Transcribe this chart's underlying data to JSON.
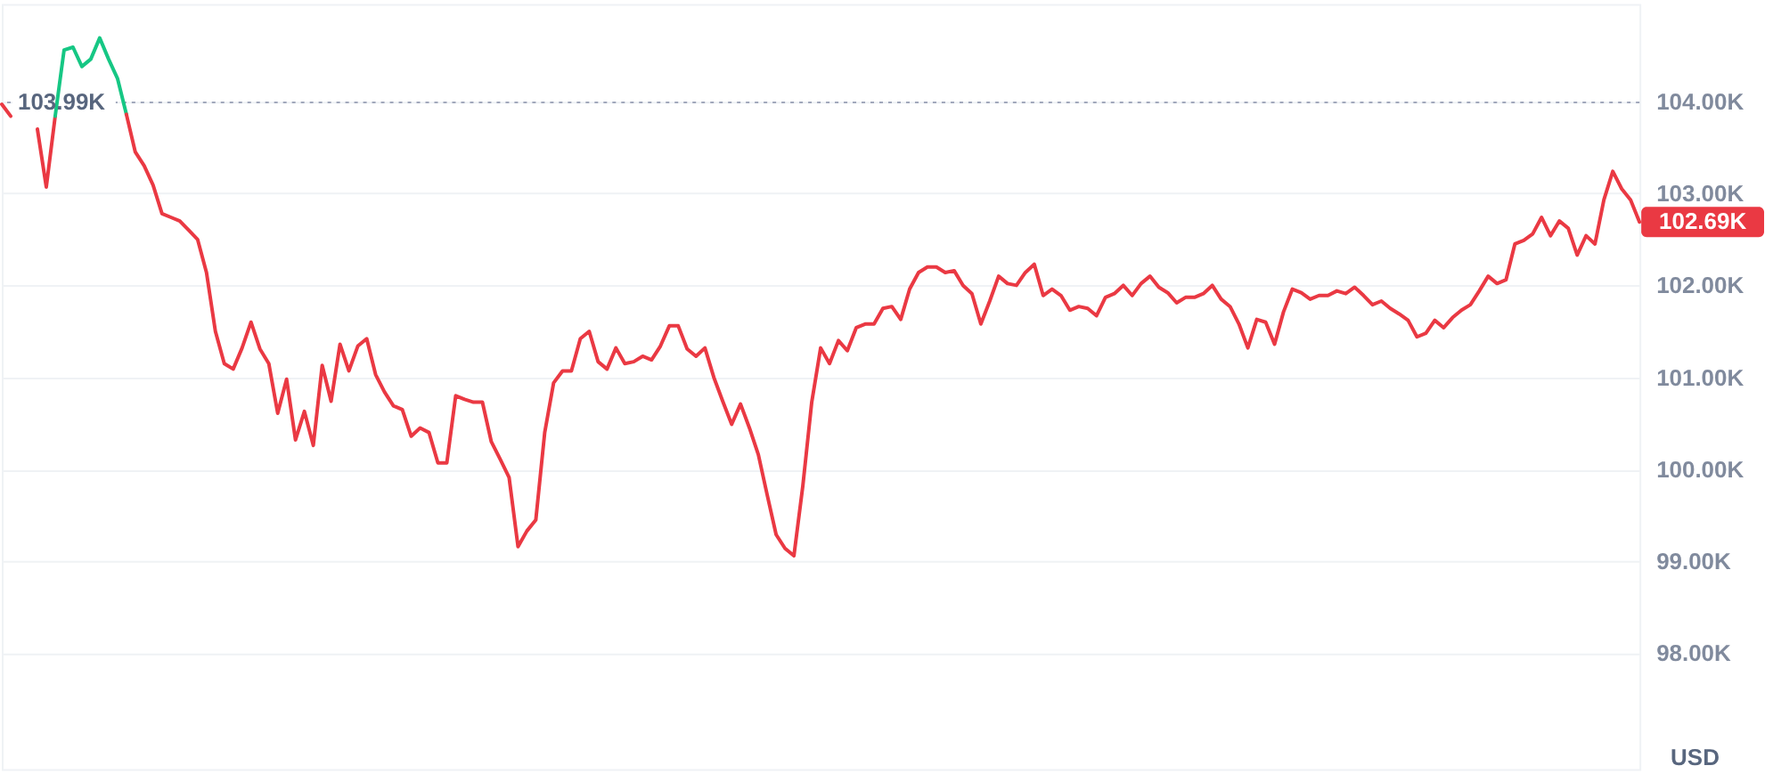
{
  "chart_data": {
    "type": "line",
    "categories": [
      null,
      null,
      null,
      null,
      null,
      null,
      null,
      null,
      null,
      null,
      null,
      null,
      null,
      null,
      null,
      null,
      null,
      null,
      null,
      null,
      null,
      null,
      null,
      null,
      null,
      null,
      null,
      null,
      null,
      null,
      null,
      null,
      null,
      null,
      null,
      null,
      null,
      null,
      null,
      null,
      null,
      null,
      null,
      null,
      null,
      null,
      null,
      null,
      null,
      null,
      null,
      null,
      null,
      null,
      null,
      null,
      null,
      null,
      null,
      null,
      null,
      null,
      null,
      null,
      null,
      null,
      null,
      null,
      null,
      null,
      null,
      null,
      null,
      null,
      null,
      null,
      null,
      null,
      null,
      null,
      null,
      null,
      null,
      null,
      null,
      null,
      null,
      null,
      null,
      null,
      null,
      null,
      null,
      null,
      null,
      null,
      null,
      null,
      null,
      null,
      null,
      null,
      null,
      null,
      null,
      null,
      null,
      null,
      null,
      null,
      null,
      null,
      null,
      null,
      null,
      null,
      null,
      null,
      null,
      null,
      null,
      null,
      null,
      null,
      null,
      null,
      null,
      null,
      null,
      null,
      null,
      null,
      null,
      null,
      null,
      null,
      null,
      null,
      null,
      null,
      null,
      null,
      null,
      null,
      null,
      null,
      null,
      null,
      null,
      null,
      null,
      null,
      null,
      null,
      null,
      null,
      null,
      null,
      null,
      null,
      null,
      null,
      null,
      null,
      null,
      null,
      null,
      null,
      null,
      null,
      null,
      null,
      null,
      null,
      null,
      null,
      null,
      null,
      null,
      null,
      null,
      null,
      null,
      null,
      null
    ],
    "ylabel": "USD",
    "ylim": [
      96.74,
      105.06
    ],
    "yticks": [
      {
        "value": 98,
        "label": "98.00K"
      },
      {
        "value": 99,
        "label": "99.00K"
      },
      {
        "value": 100,
        "label": "100.00K"
      },
      {
        "value": 101,
        "label": "101.00K"
      },
      {
        "value": 102,
        "label": "102.00K"
      },
      {
        "value": 103,
        "label": "103.00K"
      },
      {
        "value": 104,
        "label": "104.00K"
      }
    ],
    "grid": "y",
    "tick_labels": "y",
    "ref_lines": [
      {
        "axis": "y",
        "value": 103.99,
        "label": "103.99K",
        "line_style": "dotted",
        "color": "#a1a7bb"
      }
    ],
    "annotations": [
      "102.69K"
    ],
    "series": [
      {
        "color": "#ea3943",
        "values": [
          103.97,
          103.84,
          null,
          null,
          null,
          null,
          null,
          null,
          null,
          null,
          null,
          null,
          null,
          null,
          null,
          null,
          null,
          null,
          null,
          null,
          null,
          null,
          null,
          null,
          null,
          null,
          null,
          null,
          null,
          null,
          null,
          null,
          null,
          null,
          null,
          null,
          null,
          null,
          null,
          null,
          null,
          null,
          null,
          null,
          null,
          null,
          null,
          null,
          null,
          null,
          null,
          null,
          null,
          null,
          null,
          null,
          null,
          null,
          null,
          null,
          null,
          null,
          null,
          null,
          null,
          null,
          null,
          null,
          null,
          null,
          null,
          null,
          null,
          null,
          null,
          null,
          null,
          null,
          null,
          null,
          null,
          null,
          null,
          null,
          null,
          null,
          null,
          null,
          null,
          null,
          null,
          null,
          null,
          null,
          null,
          null,
          null,
          null,
          null,
          null,
          null,
          null,
          null,
          null,
          null,
          null,
          null,
          null,
          null,
          null,
          null,
          null,
          null,
          null,
          null,
          null,
          null,
          null,
          null,
          null,
          null,
          null,
          null,
          null,
          null,
          null,
          null,
          null,
          null,
          null,
          null,
          null,
          null,
          null,
          null,
          null,
          null,
          null,
          null,
          null,
          null,
          null,
          null,
          null,
          null,
          null,
          null,
          null,
          null,
          null,
          null,
          null,
          null,
          null,
          null,
          null,
          null,
          null,
          null,
          null,
          null,
          null,
          null,
          null,
          null,
          null,
          null,
          null,
          null,
          null,
          null,
          null,
          null,
          null,
          null,
          null,
          null,
          null,
          null,
          null,
          null,
          null,
          null,
          null,
          null
        ]
      },
      {
        "color": "#ea3943",
        "values": [
          null,
          null,
          null,
          null,
          103.7,
          103.07,
          103.84,
          null,
          null,
          null,
          null,
          null,
          null,
          null,
          null,
          null,
          null,
          null,
          null,
          null,
          null,
          null,
          null,
          null,
          null,
          null,
          null,
          null,
          null,
          null,
          null,
          null,
          null,
          null,
          null,
          null,
          null,
          null,
          null,
          null,
          null,
          null,
          null,
          null,
          null,
          null,
          null,
          null,
          null,
          null,
          null,
          null,
          null,
          null,
          null,
          null,
          null,
          null,
          null,
          null,
          null,
          null,
          null,
          null,
          null,
          null,
          null,
          null,
          null,
          null,
          null,
          null,
          null,
          null,
          null,
          null,
          null,
          null,
          null,
          null,
          null,
          null,
          null,
          null,
          null,
          null,
          null,
          null,
          null,
          null,
          null,
          null,
          null,
          null,
          null,
          null,
          null,
          null,
          null,
          null,
          null,
          null,
          null,
          null,
          null,
          null,
          null,
          null,
          null,
          null,
          null,
          null,
          null,
          null,
          null,
          null,
          null,
          null,
          null,
          null,
          null,
          null,
          null,
          null,
          null,
          null,
          null,
          null,
          null,
          null,
          null,
          null,
          null,
          null,
          null,
          null,
          null,
          null,
          null,
          null,
          null,
          null,
          null,
          null,
          null,
          null,
          null,
          null,
          null,
          null,
          null,
          null,
          null,
          null,
          null,
          null,
          null,
          null,
          null,
          null,
          null,
          null,
          null,
          null,
          null,
          null,
          null,
          null,
          null,
          null,
          null,
          null,
          null,
          null,
          null,
          null,
          null,
          null,
          null,
          null,
          null,
          null,
          null,
          null,
          null
        ]
      },
      {
        "color": "#16c784",
        "values": [
          null,
          null,
          null,
          null,
          null,
          null,
          103.84,
          104.56,
          104.59,
          104.38,
          104.46,
          104.69,
          104.46,
          104.25,
          103.86,
          null,
          null,
          null,
          null,
          null,
          null,
          null,
          null,
          null,
          null,
          null,
          null,
          null,
          null,
          null,
          null,
          null,
          null,
          null,
          null,
          null,
          null,
          null,
          null,
          null,
          null,
          null,
          null,
          null,
          null,
          null,
          null,
          null,
          null,
          null,
          null,
          null,
          null,
          null,
          null,
          null,
          null,
          null,
          null,
          null,
          null,
          null,
          null,
          null,
          null,
          null,
          null,
          null,
          null,
          null,
          null,
          null,
          null,
          null,
          null,
          null,
          null,
          null,
          null,
          null,
          null,
          null,
          null,
          null,
          null,
          null,
          null,
          null,
          null,
          null,
          null,
          null,
          null,
          null,
          null,
          null,
          null,
          null,
          null,
          null,
          null,
          null,
          null,
          null,
          null,
          null,
          null,
          null,
          null,
          null,
          null,
          null,
          null,
          null,
          null,
          null,
          null,
          null,
          null,
          null,
          null,
          null,
          null,
          null,
          null,
          null,
          null,
          null,
          null,
          null,
          null,
          null,
          null,
          null,
          null,
          null,
          null,
          null,
          null,
          null,
          null,
          null,
          null,
          null,
          null,
          null,
          null,
          null,
          null,
          null,
          null,
          null,
          null,
          null,
          null,
          null,
          null,
          null,
          null,
          null,
          null,
          null,
          null,
          null,
          null,
          null,
          null,
          null,
          null,
          null,
          null,
          null,
          null,
          null,
          null,
          null,
          null,
          null,
          null,
          null,
          null,
          null,
          null,
          null,
          null
        ]
      },
      {
        "color": "#ea3943",
        "values": [
          null,
          null,
          null,
          null,
          null,
          null,
          null,
          null,
          null,
          null,
          null,
          null,
          null,
          null,
          103.86,
          103.45,
          103.3,
          103.09,
          102.78,
          102.74,
          102.7,
          102.6,
          102.5,
          102.14,
          101.5,
          101.15,
          101.09,
          101.32,
          101.6,
          101.31,
          101.15,
          100.61,
          100.98,
          100.32,
          100.63,
          100.26,
          101.13,
          100.74,
          101.36,
          101.07,
          101.34,
          101.42,
          101.03,
          100.84,
          100.69,
          100.65,
          100.36,
          100.45,
          100.4,
          100.07,
          100.07,
          100.8,
          100.76,
          100.73,
          100.73,
          100.3,
          100.11,
          99.91,
          99.16,
          99.33,
          99.45,
          100.4,
          100.94,
          101.07,
          101.07,
          101.42,
          101.5,
          101.17,
          101.09,
          101.32,
          101.15,
          101.17,
          101.23,
          101.19,
          101.34,
          101.56,
          101.56,
          101.31,
          101.23,
          101.32,
          101.0,
          100.74,
          100.49,
          100.71,
          100.45,
          100.16,
          99.72,
          99.29,
          99.14,
          99.06,
          99.82,
          100.73,
          101.32,
          101.15,
          101.4,
          101.29,
          101.54,
          101.58,
          101.58,
          101.75,
          101.77,
          101.63,
          101.96,
          102.14,
          102.2,
          102.2,
          102.14,
          102.16,
          102.0,
          101.91,
          101.58,
          101.83,
          102.1,
          102.02,
          102.0,
          102.14,
          102.23,
          101.89,
          101.96,
          101.89,
          101.73,
          101.77,
          101.75,
          101.67,
          101.87,
          101.91,
          102.0,
          101.89,
          102.02,
          102.1,
          101.98,
          101.92,
          101.81,
          101.87,
          101.87,
          101.91,
          102.0,
          101.85,
          101.77,
          101.58,
          101.32,
          101.63,
          101.6,
          101.36,
          101.71,
          101.96,
          101.92,
          101.85,
          101.89,
          101.89,
          101.94,
          101.91,
          101.98,
          101.89,
          101.79,
          101.83,
          101.75,
          101.69,
          101.62,
          101.44,
          101.48,
          101.62,
          101.54,
          101.65,
          101.73,
          101.79,
          101.94,
          102.1,
          102.02,
          102.06,
          102.45,
          102.49,
          102.56,
          102.74,
          102.54,
          102.7,
          102.62,
          102.33,
          102.54,
          102.45,
          102.93,
          103.24,
          103.05,
          102.93,
          102.69
        ]
      }
    ]
  }
}
